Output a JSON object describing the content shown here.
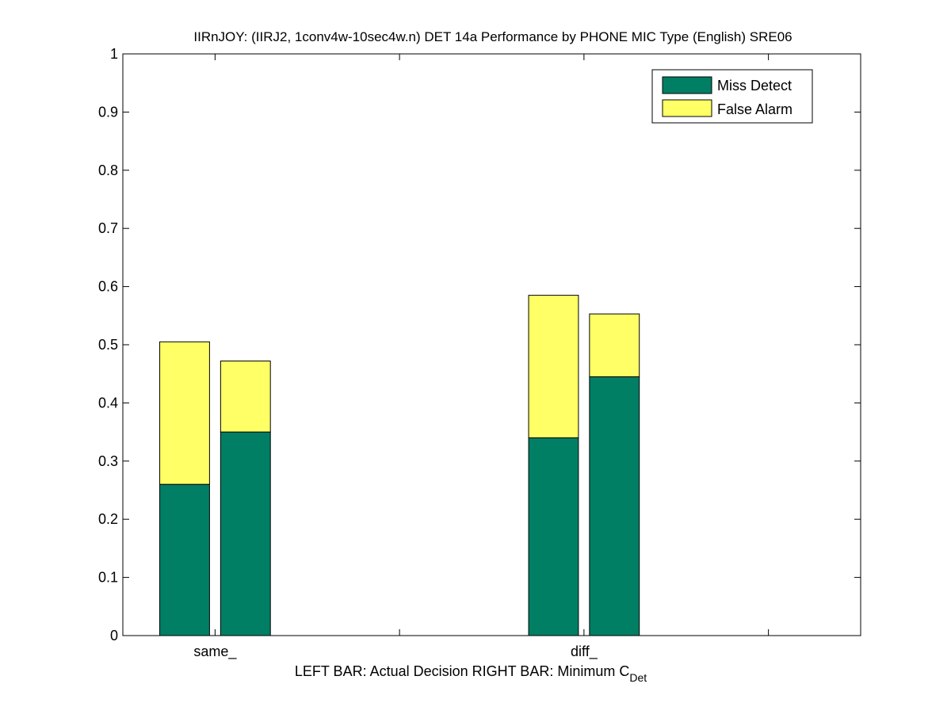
{
  "chart_data": {
    "type": "bar",
    "stacked": true,
    "title": "IIRnJOY: (IIRJ2, 1conv4w-10sec4w.n) DET 14a Performance by PHONE MIC Type (English) SRE06",
    "xlabel_main": "LEFT BAR: Actual Decision     RIGHT BAR: Minimum C",
    "xlabel_subscript": "Det",
    "categories": [
      "same_",
      "diff_"
    ],
    "bars_per_category": [
      "Actual Decision",
      "Minimum C_Det"
    ],
    "series": [
      {
        "name": "Miss Detect",
        "color": "#007f64",
        "values": [
          [
            0.26,
            0.35
          ],
          [
            0.34,
            0.445
          ]
        ]
      },
      {
        "name": "False Alarm",
        "color": "#ffff66",
        "values": [
          [
            0.245,
            0.122
          ],
          [
            0.245,
            0.108
          ]
        ]
      }
    ],
    "ylim": [
      0,
      1
    ],
    "yticks": [
      0,
      0.1,
      0.2,
      0.3,
      0.4,
      0.5,
      0.6,
      0.7,
      0.8,
      0.9,
      1
    ],
    "ytick_labels": [
      "0",
      "0.1",
      "0.2",
      "0.3",
      "0.4",
      "0.5",
      "0.6",
      "0.7",
      "0.8",
      "0.9",
      "1"
    ],
    "xlim": [
      0.5,
      4.5
    ],
    "xticks": [
      1,
      2,
      3,
      4
    ],
    "xtick_labels": [
      "same_",
      "",
      "diff_",
      ""
    ],
    "grid": false,
    "legend_position": "top-right"
  }
}
